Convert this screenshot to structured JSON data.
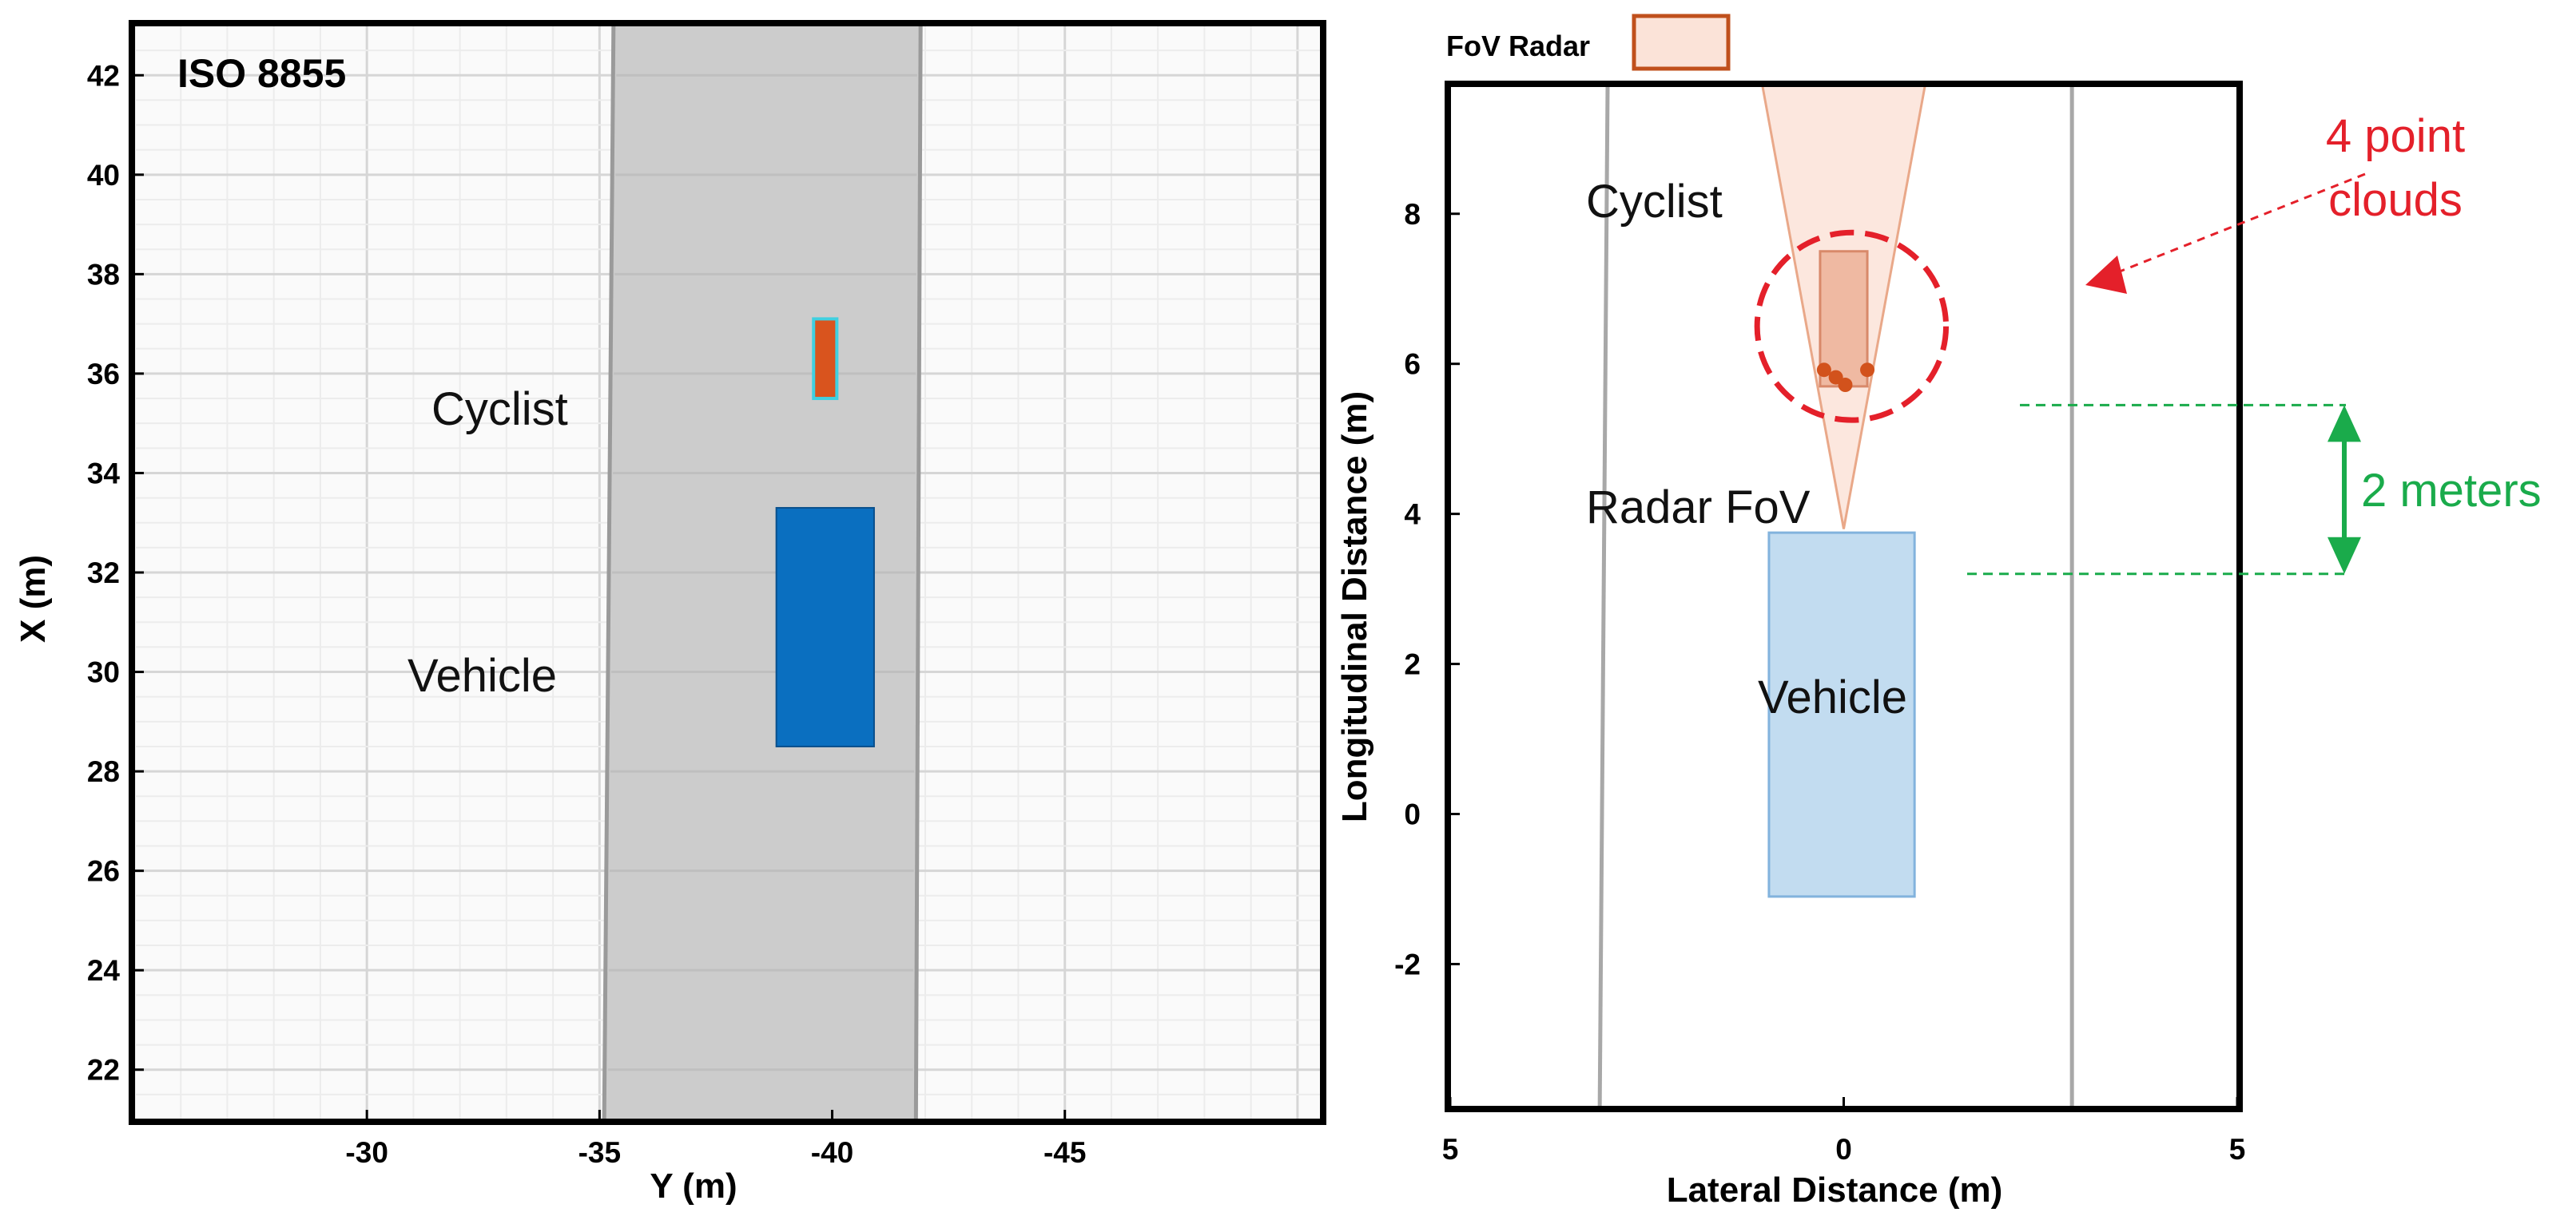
{
  "chart_data": [
    {
      "type": "scatter",
      "title": "ISO 8855",
      "xlabel": "Y (m)",
      "ylabel": "X (m)",
      "xlim": [
        -25,
        -50.5
      ],
      "ylim": [
        21,
        43
      ],
      "xticks": [
        -30,
        -35,
        -40,
        -45
      ],
      "yticks": [
        22,
        24,
        26,
        28,
        30,
        32,
        34,
        36,
        38,
        40,
        42
      ],
      "tick_labels_x": [
        "-30",
        "-35",
        "-40",
        "-45"
      ],
      "tick_labels_y": [
        "22",
        "24",
        "26",
        "28",
        "30",
        "32",
        "34",
        "36",
        "38",
        "40",
        "42"
      ],
      "grid": true,
      "road": {
        "y_left_bottom": -35.1,
        "y_left_top": -35.3,
        "y_right_bottom": -41.8,
        "y_right_top": -41.9,
        "color": "#cccccc"
      },
      "objects": [
        {
          "label": "Cyclist",
          "y_min": -39.6,
          "y_max": -40.1,
          "x_min": 35.5,
          "x_max": 37.1,
          "color": "#d9541e",
          "edge": "#40d0e0"
        },
        {
          "label": "Vehicle",
          "y_min": -38.8,
          "y_max": -40.9,
          "x_min": 28.5,
          "x_max": 33.3,
          "color": "#0a6fc0"
        }
      ],
      "annotations": [
        "Cyclist",
        "Vehicle"
      ]
    },
    {
      "type": "scatter",
      "xlabel": "Lateral Distance (m)",
      "ylabel": "Longitudinal Distance (m)",
      "xlim": [
        5,
        -5
      ],
      "ylim": [
        -3.9,
        9.7
      ],
      "xticks": [
        5,
        0,
        -5
      ],
      "yticks": [
        -2,
        0,
        2,
        4,
        6,
        8
      ],
      "tick_labels_x": [
        "5",
        "0",
        "5"
      ],
      "tick_labels_y": [
        "-2",
        "0",
        "2",
        "4",
        "6",
        "8"
      ],
      "legend": {
        "label": "FoV Radar",
        "position": "top-left",
        "fill": "#fbe3d8",
        "edge": "#c0501c"
      },
      "lane_lines": [
        {
          "lateral_bottom": 3.1,
          "lateral_top": 3.0
        },
        {
          "lateral_bottom": -2.9,
          "lateral_top": -2.9
        }
      ],
      "radar_fov": {
        "apex": [
          0,
          3.8
        ],
        "far_left": [
          1.05,
          9.7
        ],
        "far_right": [
          -1.05,
          9.7
        ]
      },
      "cyclist_box": {
        "lateral_min": 0.3,
        "lateral_max": -0.3,
        "longitudinal_min": 5.7,
        "longitudinal_max": 7.5
      },
      "point_cloud": [
        {
          "lateral": 0.25,
          "longitudinal": 5.92
        },
        {
          "lateral": 0.1,
          "longitudinal": 5.82
        },
        {
          "lateral": -0.02,
          "longitudinal": 5.72
        },
        {
          "lateral": -0.3,
          "longitudinal": 5.92
        }
      ],
      "highlight_circle": {
        "center": [
          -0.1,
          6.5
        ],
        "radius_lateral": 1.2,
        "radius_longitudinal": 1.25,
        "color": "#e4202a"
      },
      "vehicle_box": {
        "lateral_min": 0.95,
        "lateral_max": -0.9,
        "longitudinal_min": -1.1,
        "longitudinal_max": 3.75,
        "color": "#c2dcf0"
      },
      "distance_marker": {
        "from": 3.2,
        "to": 5.45,
        "label": "2 meters",
        "color": "#1aab4b"
      },
      "annotations": {
        "cyclist": "Cyclist",
        "radar": "Radar FoV",
        "vehicle": "Vehicle",
        "points_line1": "4 point",
        "points_line2": "clouds"
      },
      "annotation_color": "#e4202a"
    }
  ]
}
